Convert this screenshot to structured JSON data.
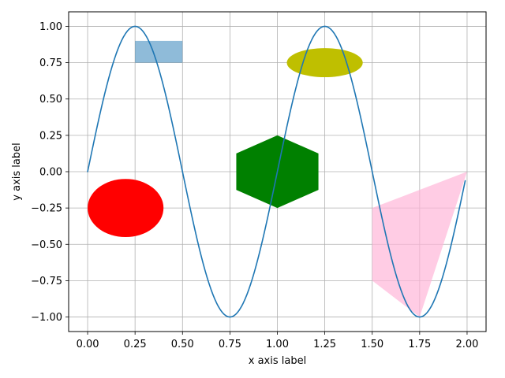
{
  "chart_data": {
    "type": "line",
    "title": "",
    "xlabel": "x axis label",
    "ylabel": "y axis label",
    "xlim": [
      -0.1,
      2.1
    ],
    "ylim": [
      -1.1,
      1.1
    ],
    "grid": true,
    "x_ticks": [
      0.0,
      0.25,
      0.5,
      0.75,
      1.0,
      1.25,
      1.5,
      1.75,
      2.0
    ],
    "x_tick_labels": [
      "0.00",
      "0.25",
      "0.50",
      "0.75",
      "1.00",
      "1.25",
      "1.50",
      "1.75",
      "2.00"
    ],
    "y_ticks": [
      -1.0,
      -0.75,
      -0.5,
      -0.25,
      0.0,
      0.25,
      0.5,
      0.75,
      1.0
    ],
    "y_tick_labels": [
      "−1.00",
      "−0.75",
      "−0.50",
      "−0.25",
      "0.00",
      "0.25",
      "0.50",
      "0.75",
      "1.00"
    ],
    "series": [
      {
        "function": "sin(2*pi*x)",
        "x_start": 0.0,
        "x_end": 1.99,
        "x_step": 0.01,
        "color": "#1f77b4"
      }
    ],
    "patches": [
      {
        "shape": "rectangle",
        "x": 0.25,
        "y": 0.75,
        "width": 0.25,
        "height": 0.15,
        "color": "#1f77b4",
        "alpha": 0.5
      },
      {
        "shape": "circle",
        "center": [
          0.2,
          -0.25
        ],
        "radius": 0.2,
        "color": "#ff0000"
      },
      {
        "shape": "ellipse",
        "center": [
          1.25,
          0.75
        ],
        "width": 0.4,
        "height": 0.2,
        "color": "#bfbf00"
      },
      {
        "shape": "hexagon",
        "center": [
          1.0,
          0.0
        ],
        "radius": 0.25,
        "color": "#008000"
      },
      {
        "shape": "polygon",
        "points": [
          [
            1.5,
            -0.25
          ],
          [
            2.0,
            0.0
          ],
          [
            1.75,
            -1.0
          ],
          [
            1.5,
            -0.75
          ]
        ],
        "color": "#ffb6d9",
        "alpha": 0.7
      }
    ]
  }
}
